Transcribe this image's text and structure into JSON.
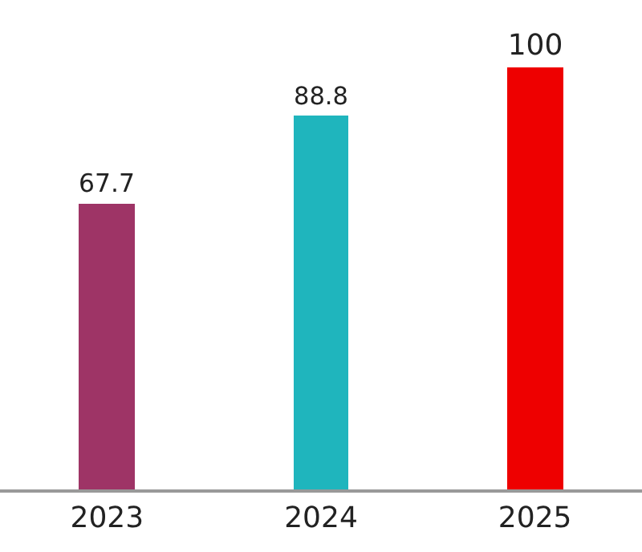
{
  "chart_data": {
    "type": "bar",
    "categories": [
      "2023",
      "2024",
      "2025"
    ],
    "values": [
      67.7,
      88.8,
      100
    ],
    "colors": [
      "#9e3466",
      "#1fb5bd",
      "#ee0000"
    ],
    "data_labels": true,
    "legend": false
  }
}
